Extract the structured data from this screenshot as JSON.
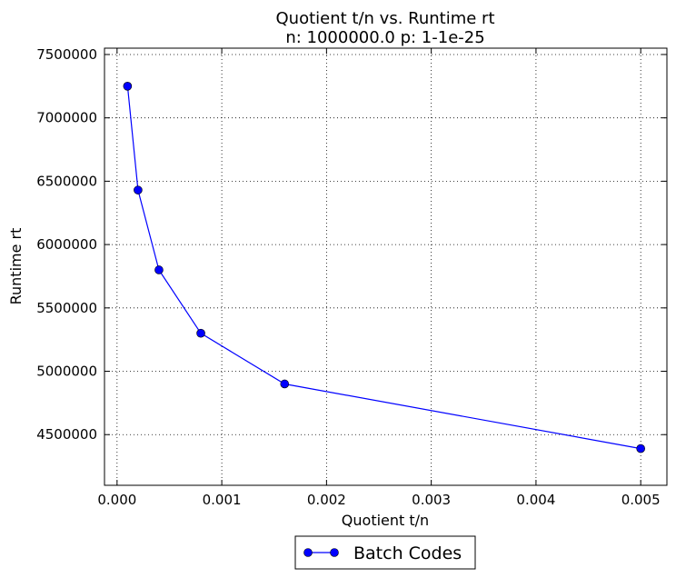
{
  "chart_data": {
    "type": "line",
    "title": "Quotient t/n vs. Runtime rt",
    "subtitle": "n: 1000000.0 p: 1-1e-25",
    "xlabel": "Quotient t/n",
    "ylabel": "Runtime rt",
    "xlim": [
      -0.00012,
      0.00525
    ],
    "ylim": [
      4100000,
      7550000
    ],
    "grid": true,
    "legend_position": "bottom-center, outside",
    "x_ticks": [
      0.0,
      0.001,
      0.002,
      0.003,
      0.004,
      0.005
    ],
    "x_tick_labels": [
      "0.000",
      "0.001",
      "0.002",
      "0.003",
      "0.004",
      "0.005"
    ],
    "y_ticks": [
      4500000,
      5000000,
      5500000,
      6000000,
      6500000,
      7000000,
      7500000
    ],
    "y_tick_labels": [
      "4500000",
      "5000000",
      "5500000",
      "6000000",
      "6500000",
      "7000000",
      "7500000"
    ],
    "series": [
      {
        "name": "Batch Codes",
        "color": "#0000ff",
        "marker": "circle",
        "x": [
          0.0001,
          0.0002,
          0.0004,
          0.0008,
          0.0016,
          0.005
        ],
        "y": [
          7250000,
          6430000,
          5800000,
          5300000,
          4900000,
          4390000
        ]
      }
    ]
  }
}
